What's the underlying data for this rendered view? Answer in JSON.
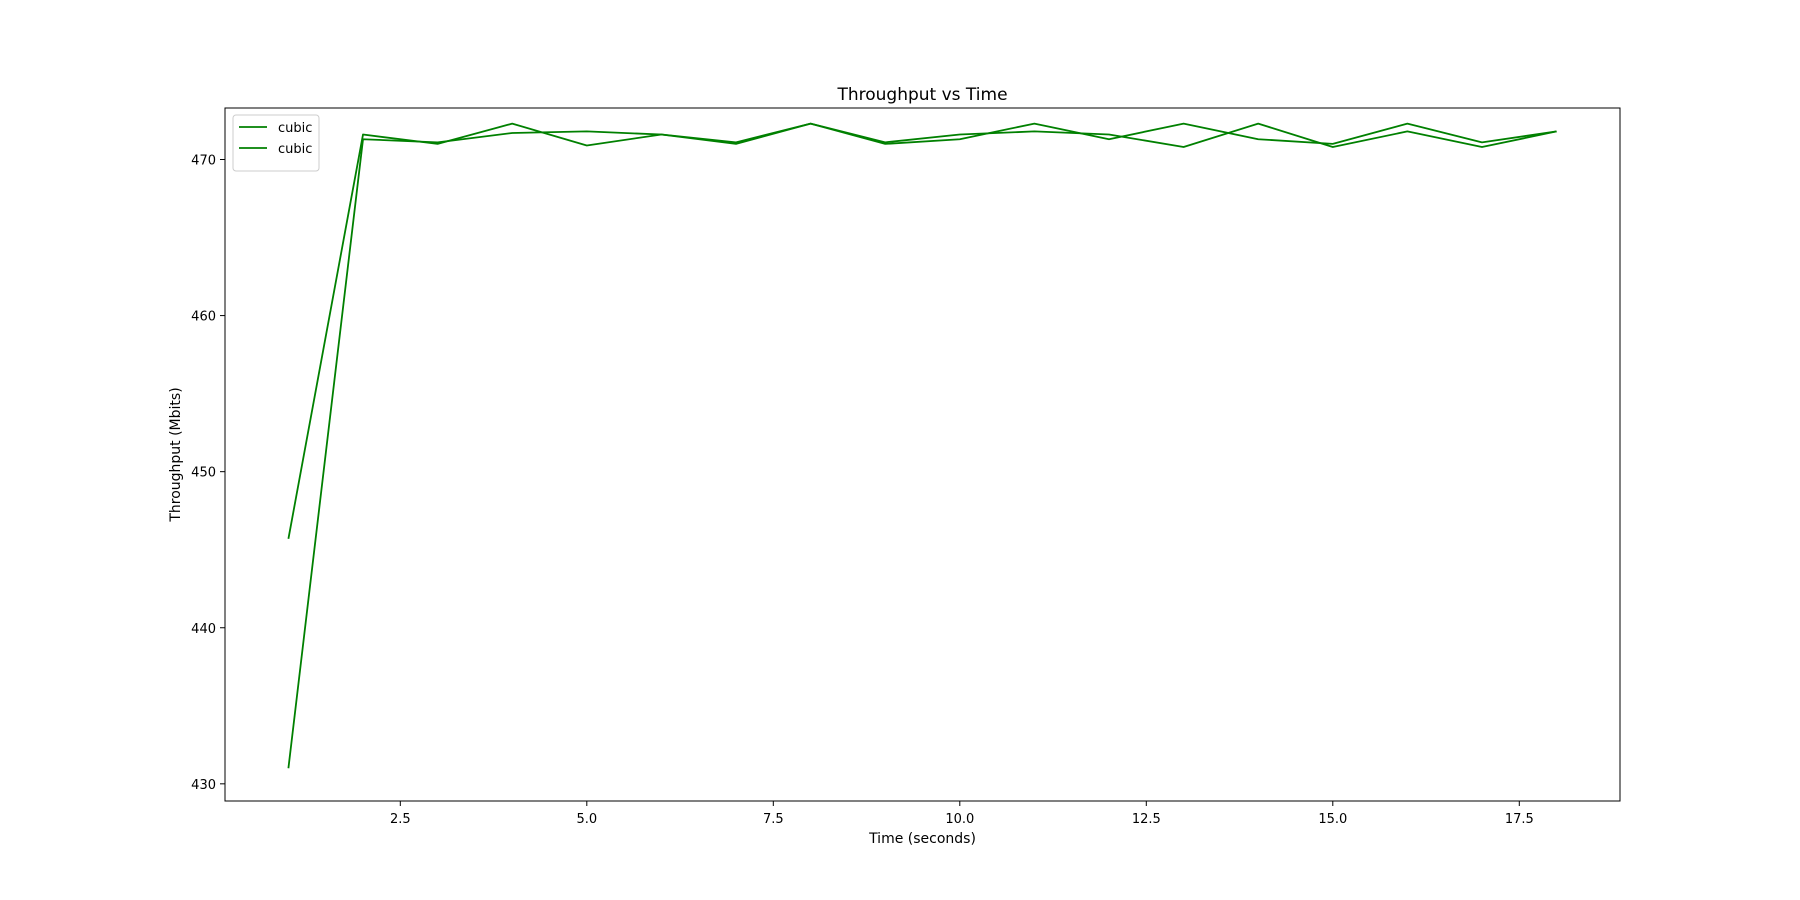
{
  "chart_data": {
    "type": "line",
    "title": "Throughput vs Time",
    "xlabel": "Time (seconds)",
    "ylabel": "Throughput (Mbits)",
    "xlim": [
      0.15,
      18.85
    ],
    "ylim": [
      428.9,
      473.3
    ],
    "xticks": [
      2.5,
      5.0,
      7.5,
      10.0,
      12.5,
      15.0,
      17.5
    ],
    "xtick_labels": [
      "2.5",
      "5.0",
      "7.5",
      "10.0",
      "12.5",
      "15.0",
      "17.5"
    ],
    "yticks": [
      430,
      440,
      450,
      460,
      470
    ],
    "ytick_labels": [
      "430",
      "440",
      "450",
      "460",
      "470"
    ],
    "grid": false,
    "legend": "upper-left",
    "series": [
      {
        "name": "cubic",
        "color": "#008000",
        "x": [
          1,
          2,
          3,
          4,
          5,
          6,
          7,
          8,
          9,
          10,
          11,
          12,
          13,
          14,
          15,
          16,
          17,
          18
        ],
        "y": [
          445.7,
          471.6,
          471.0,
          472.3,
          470.9,
          471.6,
          471.0,
          472.3,
          471.0,
          471.3,
          472.3,
          471.3,
          472.3,
          471.3,
          471.0,
          472.3,
          471.1,
          471.8
        ]
      },
      {
        "name": "cubic",
        "color": "#008000",
        "x": [
          1,
          2,
          3,
          4,
          5,
          6,
          7,
          8,
          9,
          10,
          11,
          12,
          13,
          14,
          15,
          16,
          17,
          18
        ],
        "y": [
          431.0,
          471.3,
          471.1,
          471.7,
          471.8,
          471.6,
          471.1,
          472.3,
          471.1,
          471.6,
          471.8,
          471.6,
          470.8,
          472.3,
          470.8,
          471.8,
          470.8,
          471.8
        ]
      }
    ]
  }
}
